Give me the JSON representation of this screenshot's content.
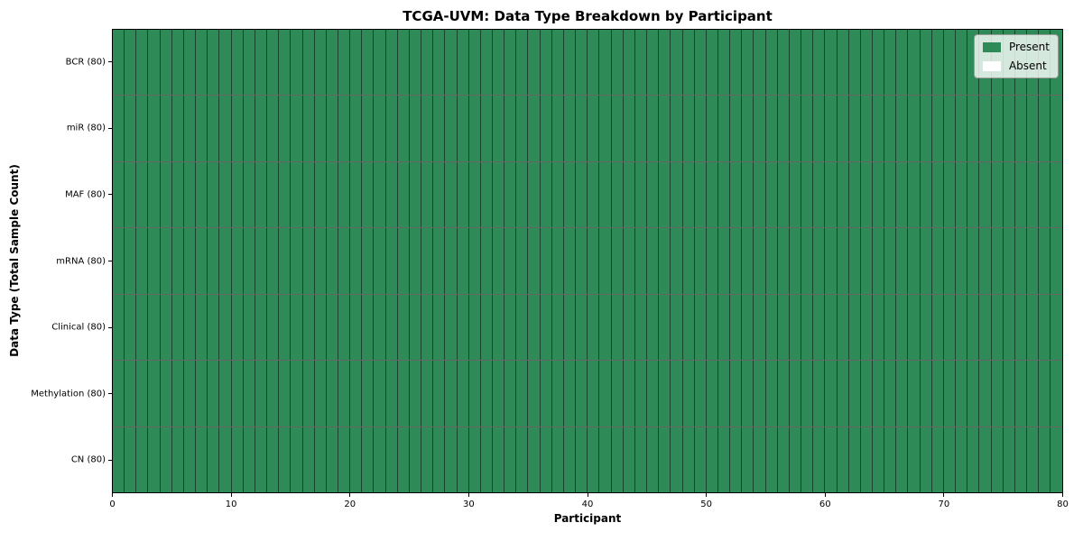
{
  "figure": {
    "title": "TCGA-UVM: Data Type Breakdown by Participant"
  },
  "chart_data": {
    "type": "heatmap",
    "title": "TCGA-UVM: Data Type Breakdown by Participant",
    "xlabel": "Participant",
    "ylabel": "Data Type (Total Sample Count)",
    "xlim": [
      0,
      80
    ],
    "x_ticks": [
      0,
      10,
      20,
      30,
      40,
      50,
      60,
      70,
      80
    ],
    "n_participants": 80,
    "grid": "cell borders on, dark thin lines",
    "legend_position": "upper right",
    "rows": [
      {
        "label": "BCR (80)",
        "data_type": "BCR",
        "total_sample_count": 80,
        "present_count": 80,
        "absent_count": 0
      },
      {
        "label": "miR (80)",
        "data_type": "miR",
        "total_sample_count": 80,
        "present_count": 80,
        "absent_count": 0
      },
      {
        "label": "MAF (80)",
        "data_type": "MAF",
        "total_sample_count": 80,
        "present_count": 80,
        "absent_count": 0
      },
      {
        "label": "mRNA (80)",
        "data_type": "mRNA",
        "total_sample_count": 80,
        "present_count": 80,
        "absent_count": 0
      },
      {
        "label": "Clinical (80)",
        "data_type": "Clinical",
        "total_sample_count": 80,
        "present_count": 80,
        "absent_count": 0
      },
      {
        "label": "Methylation (80)",
        "data_type": "Methylation",
        "total_sample_count": 80,
        "present_count": 80,
        "absent_count": 0
      },
      {
        "label": "CN (80)",
        "data_type": "CN",
        "total_sample_count": 80,
        "present_count": 80,
        "absent_count": 0
      }
    ],
    "legend": {
      "entries": [
        {
          "label": "Present",
          "color": "#2e8b57"
        },
        {
          "label": "Absent",
          "color": "#ffffff"
        }
      ]
    },
    "colors": {
      "present": "#2e8b57",
      "absent": "#ffffff",
      "spine": "#000000"
    }
  }
}
